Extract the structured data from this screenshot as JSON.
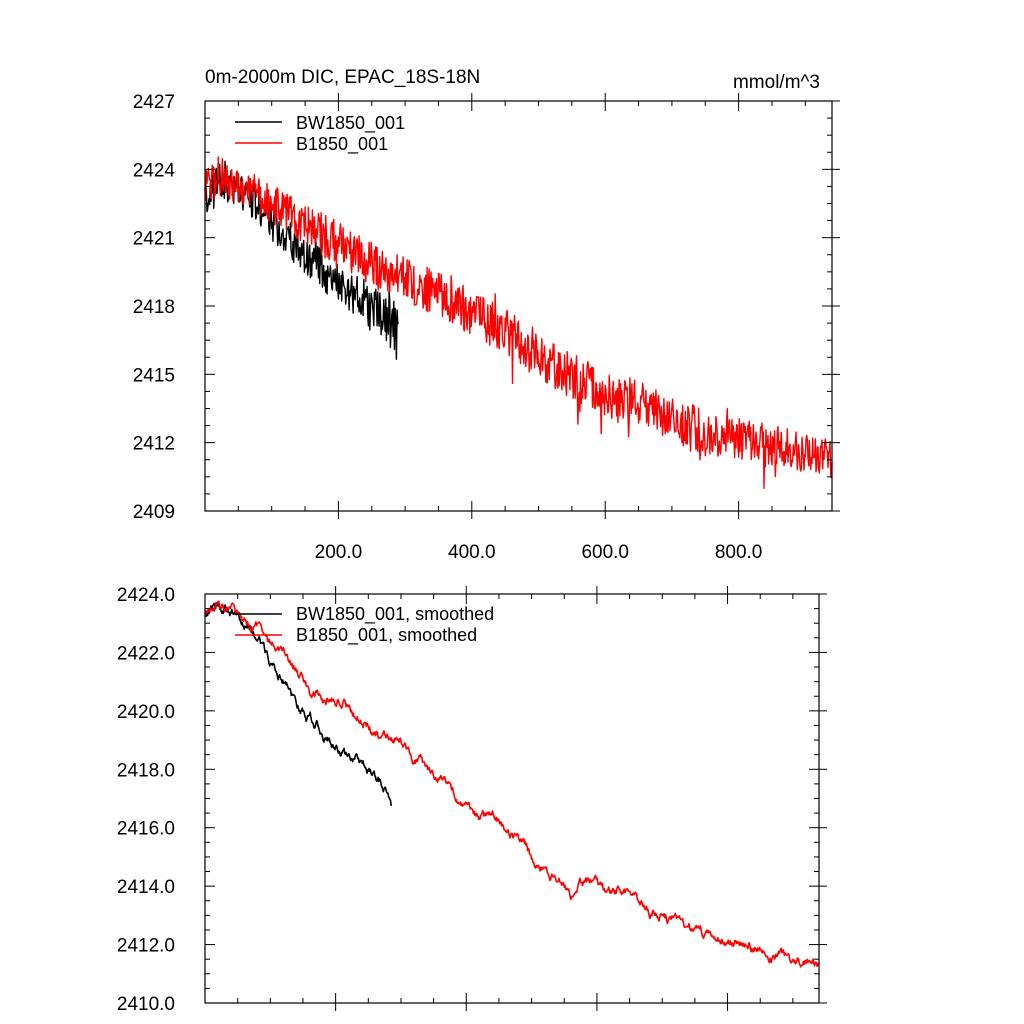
{
  "chart_data": [
    {
      "type": "line",
      "title": "0m-2000m DIC, EPAC_18S-18N",
      "units": "mmol/m^3",
      "xlim": [
        0,
        940
      ],
      "ylim": [
        2409,
        2427
      ],
      "xticks": [
        200,
        400,
        600,
        800
      ],
      "xtick_labels": [
        "200.0",
        "400.0",
        "600.0",
        "800.0"
      ],
      "yticks": [
        2409,
        2412,
        2415,
        2418,
        2421,
        2424,
        2427
      ],
      "ytick_labels": [
        "2409",
        "2412",
        "2415",
        "2418",
        "2421",
        "2424",
        "2427"
      ],
      "legend_position": "top-left",
      "series": [
        {
          "name": "BW1850_001",
          "color": "#000000",
          "noise": "high",
          "x": [
            0,
            10,
            20,
            30,
            45,
            60,
            80,
            100,
            120,
            140,
            160,
            180,
            200,
            220,
            240,
            260,
            275,
            285,
            290
          ],
          "mean": [
            2422.6,
            2423.3,
            2423.6,
            2423.5,
            2423.2,
            2422.9,
            2422.4,
            2421.7,
            2421.1,
            2420.5,
            2420.0,
            2419.5,
            2419.0,
            2418.6,
            2418.2,
            2417.8,
            2417.5,
            2417.0,
            2416.7
          ],
          "amp": [
            0.7,
            0.8,
            0.9,
            0.9,
            0.8,
            0.8,
            0.8,
            0.8,
            0.8,
            0.8,
            0.9,
            0.9,
            0.9,
            0.9,
            1.0,
            1.0,
            1.2,
            1.4,
            1.2
          ]
        },
        {
          "name": "B1850_001",
          "color": "#ff0000",
          "noise": "high",
          "x": [
            0,
            20,
            40,
            60,
            80,
            100,
            150,
            200,
            250,
            300,
            350,
            400,
            450,
            500,
            550,
            600,
            650,
            700,
            750,
            800,
            850,
            900,
            940
          ],
          "mean": [
            2423.2,
            2423.7,
            2423.5,
            2423.2,
            2422.9,
            2422.5,
            2421.6,
            2420.7,
            2419.8,
            2419.2,
            2418.5,
            2417.7,
            2416.9,
            2415.9,
            2414.9,
            2414.1,
            2413.8,
            2413.1,
            2412.4,
            2412.2,
            2411.9,
            2411.6,
            2411.2
          ],
          "amp": [
            0.9,
            0.9,
            0.9,
            0.9,
            0.9,
            0.9,
            0.9,
            1.0,
            1.0,
            1.0,
            1.0,
            1.0,
            1.0,
            1.1,
            1.1,
            1.0,
            1.0,
            1.0,
            1.0,
            0.9,
            0.9,
            0.9,
            0.9
          ]
        }
      ]
    },
    {
      "type": "line",
      "title": "",
      "xlim": [
        0,
        940
      ],
      "ylim": [
        2410,
        2424
      ],
      "xticks": [
        200,
        400,
        600,
        800
      ],
      "xtick_labels": [
        "",
        "",
        "",
        ""
      ],
      "yticks": [
        2410,
        2412,
        2414,
        2416,
        2418,
        2420,
        2422,
        2424
      ],
      "ytick_labels": [
        "2410.0",
        "2412.0",
        "2414.0",
        "2416.0",
        "2418.0",
        "2420.0",
        "2422.0",
        "2424.0"
      ],
      "legend_position": "top-left",
      "series": [
        {
          "name": "BW1850_001, smoothed",
          "color": "#000000",
          "noise": "low",
          "x": [
            0,
            10,
            20,
            30,
            40,
            50,
            60,
            70,
            80,
            90,
            100,
            110,
            120,
            130,
            140,
            150,
            160,
            170,
            180,
            190,
            200,
            210,
            220,
            230,
            240,
            250,
            260,
            270,
            280,
            285
          ],
          "mean": [
            2423.3,
            2423.5,
            2423.6,
            2423.7,
            2423.5,
            2423.2,
            2423.0,
            2422.8,
            2422.6,
            2422.2,
            2421.7,
            2421.5,
            2421.1,
            2420.6,
            2420.3,
            2420.0,
            2419.8,
            2419.6,
            2419.3,
            2419.0,
            2418.8,
            2418.6,
            2418.4,
            2418.3,
            2418.1,
            2418.0,
            2417.8,
            2417.5,
            2417.0,
            2416.6
          ],
          "amp": [
            0.12,
            0.12,
            0.12,
            0.12,
            0.12,
            0.12,
            0.12,
            0.12,
            0.12,
            0.12,
            0.12,
            0.12,
            0.12,
            0.12,
            0.12,
            0.12,
            0.12,
            0.12,
            0.12,
            0.12,
            0.12,
            0.12,
            0.12,
            0.12,
            0.12,
            0.12,
            0.12,
            0.12,
            0.12,
            0.12
          ]
        },
        {
          "name": "B1850_001, smoothed",
          "color": "#ff0000",
          "noise": "low",
          "x": [
            0,
            20,
            40,
            60,
            80,
            100,
            120,
            140,
            160,
            180,
            200,
            220,
            240,
            260,
            280,
            300,
            320,
            340,
            360,
            380,
            400,
            420,
            440,
            460,
            480,
            500,
            520,
            540,
            560,
            580,
            600,
            620,
            640,
            660,
            680,
            700,
            720,
            740,
            760,
            780,
            800,
            820,
            840,
            860,
            880,
            900,
            920,
            940
          ],
          "mean": [
            2423.3,
            2423.6,
            2423.6,
            2423.2,
            2422.8,
            2422.4,
            2422.1,
            2421.4,
            2420.7,
            2420.4,
            2420.5,
            2420.1,
            2419.7,
            2419.3,
            2419.1,
            2418.9,
            2418.4,
            2418.0,
            2417.8,
            2417.3,
            2416.8,
            2416.4,
            2416.5,
            2416.0,
            2415.6,
            2415.0,
            2414.6,
            2414.2,
            2413.8,
            2414.1,
            2414.2,
            2413.9,
            2413.8,
            2413.5,
            2413.2,
            2412.9,
            2412.8,
            2412.6,
            2412.4,
            2412.3,
            2412.1,
            2412.0,
            2411.9,
            2411.7,
            2411.6,
            2411.5,
            2411.4,
            2411.3
          ],
          "amp": [
            0.12,
            0.12,
            0.12,
            0.12,
            0.12,
            0.12,
            0.12,
            0.12,
            0.12,
            0.12,
            0.12,
            0.12,
            0.12,
            0.12,
            0.12,
            0.12,
            0.12,
            0.12,
            0.12,
            0.12,
            0.12,
            0.12,
            0.12,
            0.12,
            0.12,
            0.12,
            0.12,
            0.12,
            0.12,
            0.12,
            0.12,
            0.12,
            0.12,
            0.12,
            0.12,
            0.12,
            0.12,
            0.12,
            0.12,
            0.12,
            0.12,
            0.12,
            0.12,
            0.12,
            0.12,
            0.12,
            0.12,
            0.12
          ]
        }
      ]
    }
  ]
}
